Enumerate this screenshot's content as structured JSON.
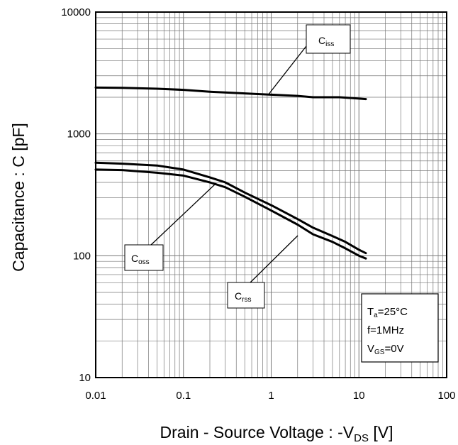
{
  "chart_data": {
    "type": "line",
    "title": "",
    "xlabel": {
      "main": "Drain - Source Voltage : -V",
      "sub": "DS",
      "unit": " [V]"
    },
    "ylabel": "Capacitance : C [pF]",
    "x_scale": "log",
    "y_scale": "log",
    "xlim": [
      0.01,
      100
    ],
    "ylim": [
      10,
      10000
    ],
    "grid": true,
    "x_tick_labels": [
      "0.01",
      "0.1",
      "1",
      "10",
      "100"
    ],
    "y_tick_labels": [
      "10",
      "100",
      "1000",
      "10000"
    ],
    "series": [
      {
        "name": "Ciss",
        "label_main": "C",
        "label_sub": "iss",
        "x": [
          0.01,
          0.02,
          0.05,
          0.1,
          0.2,
          0.5,
          1,
          2,
          3,
          5,
          6,
          10,
          12
        ],
        "y": [
          2400,
          2390,
          2350,
          2300,
          2220,
          2150,
          2100,
          2050,
          2000,
          2000,
          2000,
          1950,
          1930
        ]
      },
      {
        "name": "Coss",
        "label_main": "C",
        "label_sub": "oss",
        "x": [
          0.01,
          0.02,
          0.05,
          0.1,
          0.2,
          0.3,
          0.5,
          1,
          2,
          3,
          5,
          7,
          10,
          12
        ],
        "y": [
          580,
          570,
          550,
          510,
          440,
          400,
          330,
          260,
          200,
          170,
          145,
          130,
          112,
          105
        ]
      },
      {
        "name": "Crss",
        "label_main": "C",
        "label_sub": "rss",
        "x": [
          0.01,
          0.02,
          0.05,
          0.1,
          0.2,
          0.3,
          0.5,
          1,
          2,
          3,
          5,
          7,
          10,
          12
        ],
        "y": [
          510,
          505,
          480,
          455,
          400,
          365,
          305,
          235,
          180,
          150,
          130,
          115,
          100,
          95
        ]
      }
    ],
    "conditions": [
      {
        "main": "T",
        "sub": "a",
        "rest": "=25°C"
      },
      {
        "main": "f=1MHz",
        "sub": "",
        "rest": ""
      },
      {
        "main": "V",
        "sub": "GS",
        "rest": "=0V"
      }
    ]
  }
}
